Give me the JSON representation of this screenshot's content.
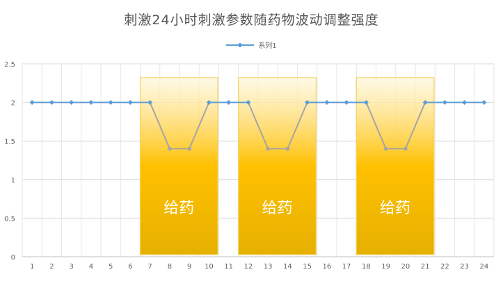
{
  "chart_data": {
    "type": "line",
    "title": "刺激24小时刺激参数随药物波动调整强度",
    "x": [
      1,
      2,
      3,
      4,
      5,
      6,
      7,
      8,
      9,
      10,
      11,
      12,
      13,
      14,
      15,
      16,
      17,
      18,
      19,
      20,
      21,
      22,
      23,
      24
    ],
    "series": [
      {
        "name": "系列1",
        "values": [
          2,
          2,
          2,
          2,
          2,
          2,
          2,
          1.4,
          1.4,
          2,
          2,
          2,
          1.4,
          1.4,
          2,
          2,
          2,
          2,
          1.4,
          1.4,
          2,
          2,
          2,
          2
        ],
        "color": "#5b9bd5",
        "dip_color": "#a5a5a5"
      }
    ],
    "ylim": [
      0,
      2.5
    ],
    "yticks": [
      "0",
      "0.5",
      "1",
      "1.5",
      "2",
      "2.5"
    ],
    "grid": true,
    "legend_position": "top-center",
    "annotations": [
      {
        "label": "给药",
        "x_from": 7,
        "x_to": 10
      },
      {
        "label": "给药",
        "x_from": 12,
        "x_to": 15
      },
      {
        "label": "给药",
        "x_from": 18,
        "x_to": 21
      }
    ],
    "band_colors": {
      "top": "#fff7dd",
      "mid": "#ffc000",
      "bottom": "#e6b000",
      "border": "#f2d35c"
    }
  }
}
